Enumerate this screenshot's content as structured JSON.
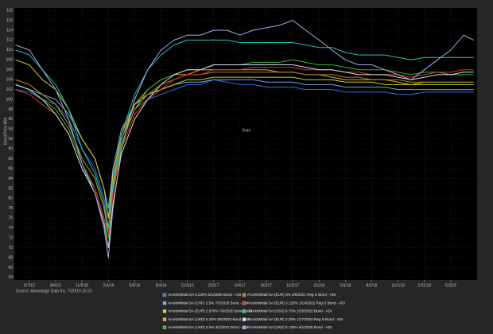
{
  "chart_data": {
    "type": "line",
    "xlabel": "Date",
    "ylabel": "Bond Price Mid",
    "source": "Source: Advantage Data Inc. 7/20/19 16:23",
    "grid": true,
    "legend": "bottom",
    "x": [
      "2015-03-20",
      "2015-05-07",
      "2015-06-21",
      "2015-08-06",
      "2015-09-20",
      "2015-11-05",
      "2015-12-20",
      "2016-01-20",
      "2016-02-04",
      "2016-02-20",
      "2016-03-20",
      "2016-05-05",
      "2016-06-19",
      "2016-08-04",
      "2016-09-18",
      "2016-11-03",
      "2016-12-18",
      "2017-02-02",
      "2017-03-19",
      "2017-05-04",
      "2017-06-18",
      "2017-08-03",
      "2017-09-17",
      "2017-11-02",
      "2017-12-17",
      "2018-02-01",
      "2018-03-18",
      "2018-05-03",
      "2018-06-17",
      "2018-08-02",
      "2018-09-16",
      "2018-11-01",
      "2018-12-16",
      "2019-01-31",
      "2019-03-17",
      "2019-05-02",
      "2019-06-16",
      "2019-07-20"
    ],
    "xlim": [
      "2015-03-16",
      "2019-08-01"
    ],
    "xticks": [
      {
        "value": "2015-05-07",
        "label": "5/7/15"
      },
      {
        "value": "2015-08-06",
        "label": "8/6/15"
      },
      {
        "value": "2015-11-05",
        "label": "11/5/15"
      },
      {
        "value": "2016-02-04",
        "label": "2/4/16"
      },
      {
        "value": "2016-05-05",
        "label": "5/5/16"
      },
      {
        "value": "2016-08-04",
        "label": "8/4/16"
      },
      {
        "value": "2016-11-03",
        "label": "11/3/16"
      },
      {
        "value": "2017-02-02",
        "label": "2/2/17"
      },
      {
        "value": "2017-05-04",
        "label": "5/4/17"
      },
      {
        "value": "2017-08-03",
        "label": "8/3/17"
      },
      {
        "value": "2017-11-02",
        "label": "11/2/17"
      },
      {
        "value": "2018-02-01",
        "label": "2/1/18"
      },
      {
        "value": "2018-05-03",
        "label": "5/3/18"
      },
      {
        "value": "2018-08-02",
        "label": "8/2/18"
      },
      {
        "value": "2018-11-01",
        "label": "11/1/18"
      },
      {
        "value": "2019-01-31",
        "label": "1/31/19"
      },
      {
        "value": "2019-05-02",
        "label": "5/2/19"
      }
    ],
    "ylim": [
      63.5,
      118.5
    ],
    "yticks": [
      64,
      66,
      68,
      70,
      72,
      74,
      76,
      78,
      80,
      82,
      84,
      86,
      88,
      90,
      92,
      94,
      96,
      98,
      100,
      102,
      104,
      106,
      108,
      110,
      112,
      114,
      116,
      118
    ],
    "series": [
      {
        "name": "ArcelorMittal SA 5.125% 6/1/2020 Bond - ADI",
        "color": "#2f74d6",
        "values": [
          102,
          101.5,
          100,
          99,
          96,
          90,
          86,
          80,
          76,
          84,
          92,
          98,
          100,
          101,
          102,
          103,
          103,
          104,
          103.5,
          103,
          103,
          102.5,
          102.5,
          102.5,
          102,
          102,
          102,
          101.5,
          101.5,
          101.5,
          101.5,
          101,
          101,
          101.5,
          101.5,
          101.5,
          101.5,
          101.5
        ]
      },
      {
        "name": "ArcelorMittal SA (CHF) 2.5% 7/3/2020 Bond - ADI",
        "color": "#6fa3e8",
        "values": [
          103,
          102,
          101,
          100,
          97,
          92,
          88,
          82,
          78,
          86,
          94,
          99,
          101,
          102,
          103,
          103.5,
          103.5,
          104,
          104,
          104,
          104,
          103.5,
          103.5,
          103.5,
          103,
          103,
          103,
          102.5,
          102.5,
          102.5,
          102.5,
          102,
          102,
          102,
          102,
          102,
          102,
          102
        ]
      },
      {
        "name": "ArcelorMittal SA (EUR) 2.875% 7/6/2020 Bond - ADI",
        "color": "#c9d12a",
        "values": [
          108,
          107,
          104,
          102,
          98,
          92,
          88,
          82,
          76,
          85,
          93,
          99,
          101,
          102,
          103,
          104,
          104,
          104.5,
          104.5,
          104.5,
          104.5,
          104.5,
          104.5,
          104.5,
          104,
          104,
          104,
          103.5,
          103.5,
          103.5,
          103,
          103,
          103,
          103,
          103,
          103,
          103,
          103
        ]
      },
      {
        "name": "ArcelorMittal SA (USD) 6.25% 8/5/2020 Bond - ADI",
        "color": "#f0a032",
        "values": [
          104,
          103,
          101,
          99,
          95,
          88,
          84,
          78,
          73,
          82,
          92,
          99,
          102,
          104,
          105,
          105,
          106,
          106,
          106,
          106,
          106,
          106,
          105.5,
          105.5,
          105,
          105,
          104.5,
          104,
          104,
          104,
          104,
          103.5,
          103,
          103.5,
          103.5,
          103.5,
          103.5,
          103.5
        ]
      },
      {
        "name": "ArcelorMittal SA (USD) 5.5% 3/1/2021 Bond - ADI",
        "color": "#2fb33a",
        "values": [
          103,
          102,
          100,
          98,
          94,
          87,
          82,
          76,
          72,
          81,
          91,
          98,
          102,
          104,
          105,
          106,
          106,
          107,
          107,
          107,
          107.5,
          107.5,
          107.5,
          108,
          107.5,
          107,
          107,
          106.5,
          106,
          106,
          106,
          105.5,
          105,
          105.5,
          105.5,
          105,
          105,
          105
        ]
      },
      {
        "name": "ArcelorMittal SA (EUR) 3% 4/9/2021 Reg S Bond - ADI",
        "color": "#a58322",
        "values": [
          104,
          103,
          101,
          99,
          95,
          88,
          84,
          78,
          74,
          83,
          92,
          98,
          101,
          103,
          104,
          105,
          105,
          105.5,
          105.5,
          105.5,
          105.5,
          105.5,
          105.5,
          105.5,
          105,
          105,
          105,
          104.5,
          104.5,
          104,
          104,
          104,
          103.5,
          103.5,
          103.5,
          103.5,
          103.5,
          103.5
        ]
      },
      {
        "name": "ArcelorMittal SA (EUR) 3.125% 1/14/2022 Reg S Bond - ADI",
        "color": "#e0321f",
        "values": [
          102,
          101,
          99,
          97,
          93,
          86,
          82,
          76,
          73,
          81,
          90,
          97,
          100,
          102,
          104,
          105,
          105,
          106,
          106,
          106,
          106.5,
          106.5,
          106.5,
          106.5,
          106,
          106,
          106,
          105.5,
          105.5,
          105,
          105,
          105,
          104.5,
          105,
          105.5,
          105.5,
          106,
          106
        ]
      },
      {
        "name": "ArcelorMittal SA (USD) 6.75% 2/25/2022 Bond - ADI",
        "color": "#22c4c0",
        "values": [
          110,
          109,
          106,
          103,
          98,
          90,
          85,
          79,
          74,
          83,
          93,
          101,
          106,
          109,
          111,
          112,
          112,
          112,
          112,
          111.5,
          111.5,
          111.5,
          111.5,
          111.5,
          111,
          110.5,
          110.5,
          109.5,
          109,
          109,
          109,
          108.5,
          108,
          108.5,
          108.5,
          108.5,
          108.5,
          108.5
        ]
      },
      {
        "name": "ArcelorMittal SA (EUR) 2.25% 1/17/2024 Reg S Bond - ADI",
        "color": "#d4dde8",
        "values": [
          103,
          102,
          100,
          97,
          93,
          86,
          81,
          75,
          70,
          79,
          89,
          96,
          100,
          103,
          105,
          106,
          106,
          107,
          107,
          107,
          107,
          107,
          107,
          107,
          106.5,
          106,
          106,
          105.5,
          105,
          105,
          105,
          104.5,
          104,
          104.5,
          105,
          105,
          105.5,
          105.5
        ]
      },
      {
        "name": "ArcelorMittal SA (USD) 6.125% 6/1/2025 Bond - ADI",
        "color": "#a3abe3",
        "values": [
          111,
          110,
          106,
          102,
          96,
          87,
          81,
          74,
          68,
          78,
          90,
          100,
          106,
          110,
          112,
          113,
          113,
          114,
          114,
          113,
          114,
          114.5,
          115,
          116,
          114,
          112,
          110,
          108,
          107,
          107,
          106,
          105,
          104,
          106,
          108,
          110,
          113,
          112
        ]
      }
    ]
  }
}
